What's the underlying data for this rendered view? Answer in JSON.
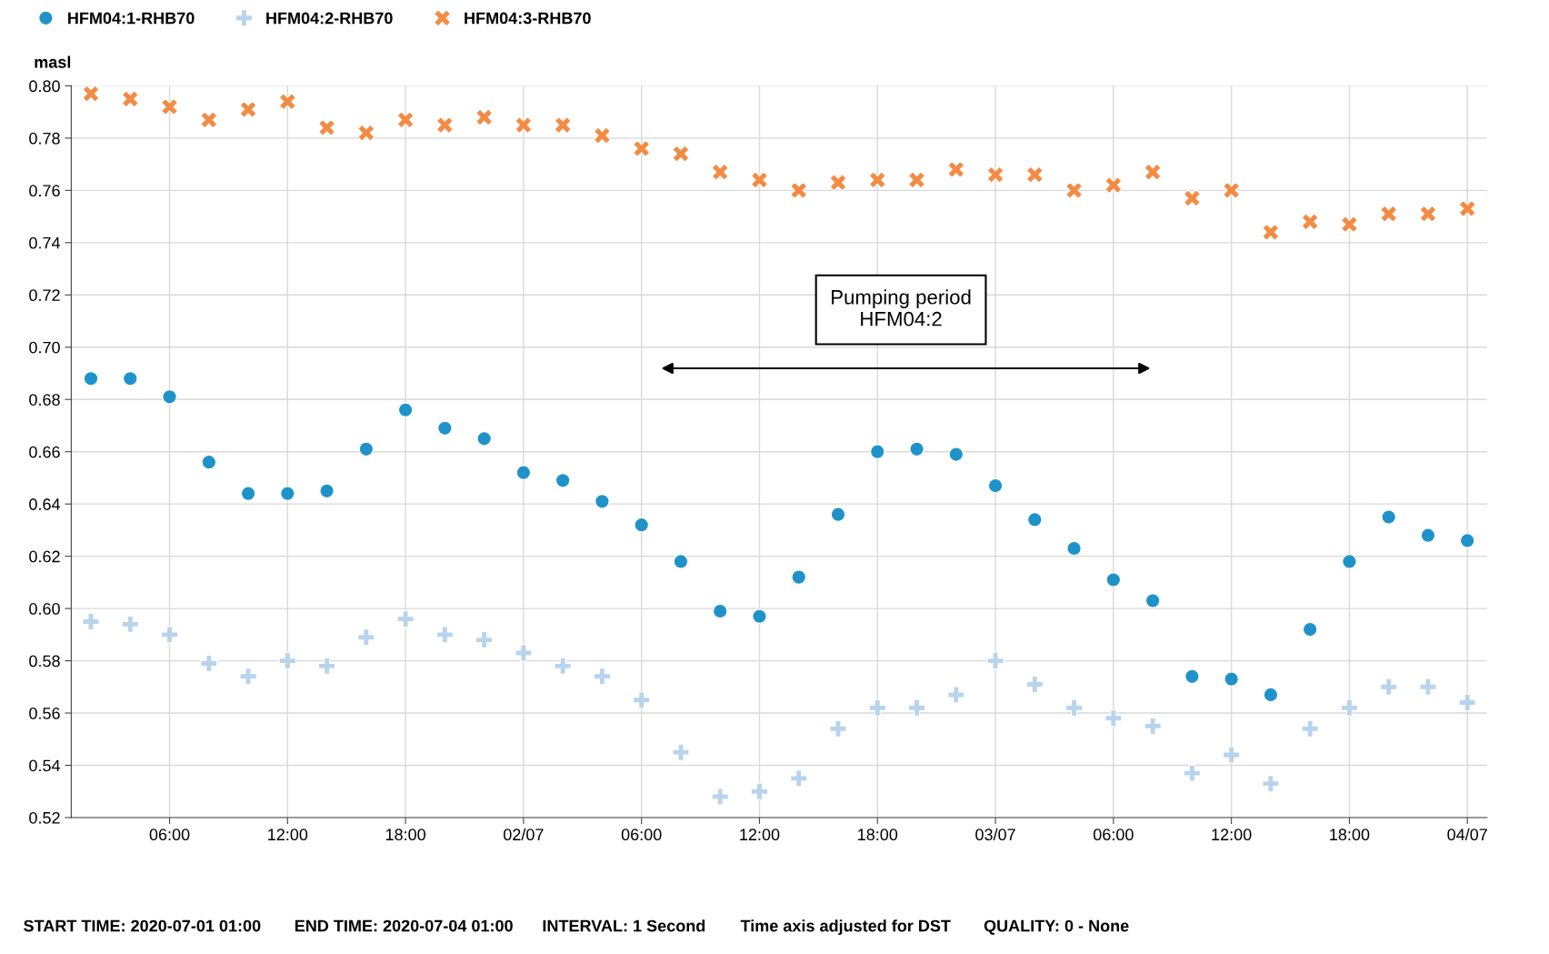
{
  "chart_data": {
    "type": "scatter",
    "ylabel": "masl",
    "x": [
      "2020-07-01T02:00",
      "2020-07-01T04:00",
      "2020-07-01T06:00",
      "2020-07-01T08:00",
      "2020-07-01T10:00",
      "2020-07-01T12:00",
      "2020-07-01T14:00",
      "2020-07-01T16:00",
      "2020-07-01T18:00",
      "2020-07-01T20:00",
      "2020-07-01T22:00",
      "2020-07-02T00:00",
      "2020-07-02T02:00",
      "2020-07-02T04:00",
      "2020-07-02T06:00",
      "2020-07-02T08:00",
      "2020-07-02T10:00",
      "2020-07-02T12:00",
      "2020-07-02T14:00",
      "2020-07-02T16:00",
      "2020-07-02T18:00",
      "2020-07-02T20:00",
      "2020-07-02T22:00",
      "2020-07-03T00:00",
      "2020-07-03T02:00",
      "2020-07-03T04:00",
      "2020-07-03T06:00",
      "2020-07-03T08:00",
      "2020-07-03T10:00",
      "2020-07-03T12:00",
      "2020-07-03T14:00",
      "2020-07-03T16:00",
      "2020-07-03T18:00",
      "2020-07-03T20:00",
      "2020-07-03T22:00",
      "2020-07-04T00:00"
    ],
    "series": [
      {
        "name": "HFM04:1-RHB70",
        "color": "#1f93c9",
        "marker": "circle",
        "values": [
          0.688,
          0.688,
          0.681,
          0.656,
          0.644,
          0.644,
          0.645,
          0.661,
          0.676,
          0.669,
          0.665,
          0.652,
          0.649,
          0.641,
          0.632,
          0.618,
          0.599,
          0.597,
          0.612,
          0.636,
          0.66,
          0.661,
          0.659,
          0.647,
          0.634,
          0.623,
          0.611,
          0.603,
          0.574,
          0.573,
          0.567,
          0.592,
          0.618,
          0.635,
          0.628,
          0.626
        ]
      },
      {
        "name": "HFM04:2-RHB70",
        "color": "#b8d4ec",
        "marker": "plus",
        "values": [
          0.595,
          0.594,
          0.59,
          0.579,
          0.574,
          0.58,
          0.578,
          0.589,
          0.596,
          0.59,
          0.588,
          0.583,
          0.578,
          0.574,
          0.565,
          0.545,
          0.528,
          0.53,
          0.535,
          0.554,
          0.562,
          0.562,
          0.567,
          0.58,
          0.571,
          0.562,
          0.558,
          0.555,
          0.537,
          0.544,
          0.533,
          0.554,
          0.562,
          0.57,
          0.57,
          0.564
        ]
      },
      {
        "name": "HFM04:3-RHB70",
        "color": "#f28c45",
        "marker": "cross",
        "values": [
          0.797,
          0.795,
          0.792,
          0.787,
          0.791,
          0.794,
          0.784,
          0.782,
          0.787,
          0.785,
          0.788,
          0.785,
          0.785,
          0.781,
          0.776,
          0.774,
          0.767,
          0.764,
          0.76,
          0.763,
          0.764,
          0.764,
          0.768,
          0.766,
          0.766,
          0.76,
          0.762,
          0.767,
          0.757,
          0.76,
          0.744,
          0.748,
          0.747,
          0.751,
          0.751,
          0.753
        ]
      }
    ],
    "xlim": [
      "2020-07-01T01:00",
      "2020-07-04T01:00"
    ],
    "xticks": [
      {
        "value": "2020-07-01T06:00",
        "label": "06:00"
      },
      {
        "value": "2020-07-01T12:00",
        "label": "12:00"
      },
      {
        "value": "2020-07-01T18:00",
        "label": "18:00"
      },
      {
        "value": "2020-07-02T00:00",
        "label": "02/07"
      },
      {
        "value": "2020-07-02T06:00",
        "label": "06:00"
      },
      {
        "value": "2020-07-02T12:00",
        "label": "12:00"
      },
      {
        "value": "2020-07-02T18:00",
        "label": "18:00"
      },
      {
        "value": "2020-07-03T00:00",
        "label": "03/07"
      },
      {
        "value": "2020-07-03T06:00",
        "label": "06:00"
      },
      {
        "value": "2020-07-03T12:00",
        "label": "12:00"
      },
      {
        "value": "2020-07-03T18:00",
        "label": "18:00"
      },
      {
        "value": "2020-07-04T00:00",
        "label": "04/07"
      }
    ],
    "ylim": [
      0.52,
      0.8
    ],
    "yticks": [
      {
        "value": 0.52,
        "label": "0.52"
      },
      {
        "value": 0.54,
        "label": "0.54"
      },
      {
        "value": 0.56,
        "label": "0.56"
      },
      {
        "value": 0.58,
        "label": "0.58"
      },
      {
        "value": 0.6,
        "label": "0.60"
      },
      {
        "value": 0.62,
        "label": "0.62"
      },
      {
        "value": 0.64,
        "label": "0.64"
      },
      {
        "value": 0.66,
        "label": "0.66"
      },
      {
        "value": 0.68,
        "label": "0.68"
      },
      {
        "value": 0.7,
        "label": "0.70"
      },
      {
        "value": 0.72,
        "label": "0.72"
      },
      {
        "value": 0.74,
        "label": "0.74"
      },
      {
        "value": 0.76,
        "label": "0.76"
      },
      {
        "value": 0.78,
        "label": "0.78"
      },
      {
        "value": 0.8,
        "label": "0.80"
      }
    ],
    "grid": true,
    "legend": "top left",
    "annotations": [
      "Pumping period\nHFM04:2",
      "START TIME: 2020-07-01 01:00",
      "END TIME: 2020-07-04 01:00",
      "INTERVAL: 1 Second",
      "Time axis adjusted for DST",
      "QUALITY: 0 - None"
    ]
  }
}
